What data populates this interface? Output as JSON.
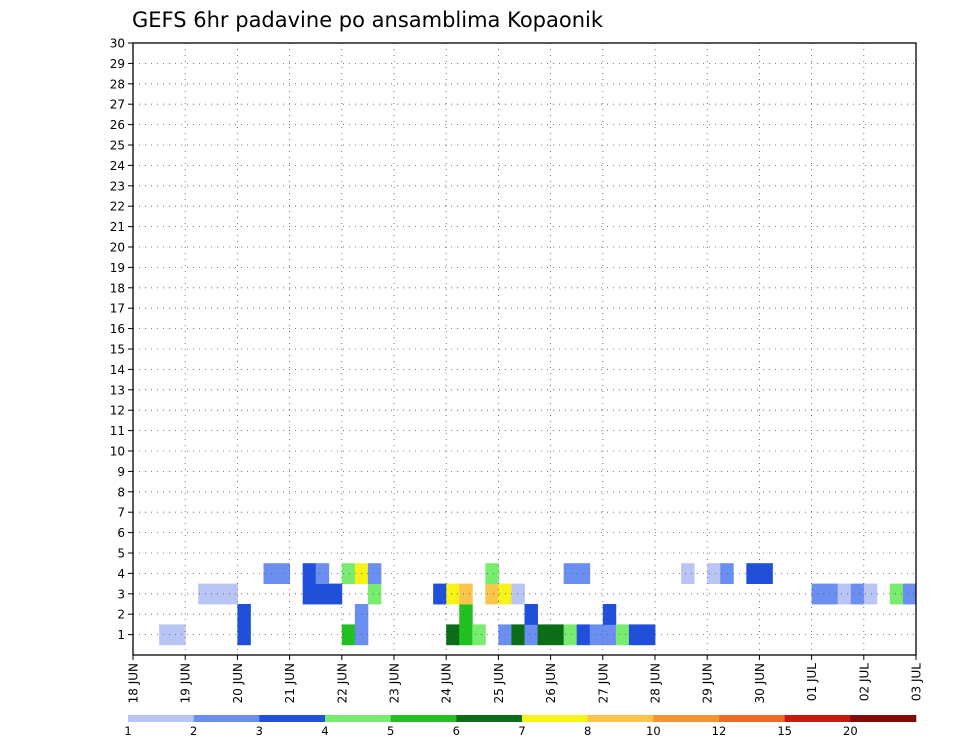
{
  "chart_data": {
    "type": "heatmap",
    "title": "GEFS 6hr padavine po ansamblima Kopaonik",
    "x_labels": [
      "18 JUN",
      "19 JUN",
      "20 JUN",
      "21 JUN",
      "22 JUN",
      "23 JUN",
      "24 JUN",
      "25 JUN",
      "26 JUN",
      "27 JUN",
      "28 JUN",
      "29 JUN",
      "30 JUN",
      "01 JUL",
      "02 JUL",
      "03 JUL"
    ],
    "y_labels": [
      "1",
      "2",
      "3",
      "4",
      "5",
      "6",
      "7",
      "8",
      "9",
      "10",
      "11",
      "12",
      "13",
      "14",
      "15",
      "16",
      "17",
      "18",
      "19",
      "20",
      "21",
      "22",
      "23",
      "24",
      "25",
      "26",
      "27",
      "28",
      "29",
      "30"
    ],
    "ylim": [
      0,
      30
    ],
    "x_steps": 60,
    "steps_per_day": 4,
    "grid": true,
    "colorbar": {
      "tick_labels": [
        "1",
        "2",
        "3",
        "4",
        "5",
        "6",
        "7",
        "8",
        "10",
        "12",
        "15",
        "20"
      ],
      "colors": [
        "#b9c6f5",
        "#6a8ff0",
        "#1f4fdb",
        "#78ec6e",
        "#22c122",
        "#0a6e16",
        "#f7f218",
        "#fbc44a",
        "#f79433",
        "#ef6a22",
        "#c8190f",
        "#840a0a"
      ]
    },
    "cells": [
      [
        2,
        1,
        0
      ],
      [
        3,
        1,
        0
      ],
      [
        8,
        1,
        2
      ],
      [
        8,
        2,
        2
      ],
      [
        16,
        1,
        4
      ],
      [
        17,
        1,
        1
      ],
      [
        17,
        2,
        1
      ],
      [
        24,
        1,
        5
      ],
      [
        25,
        1,
        4
      ],
      [
        25,
        2,
        4
      ],
      [
        26,
        1,
        3
      ],
      [
        28,
        1,
        1
      ],
      [
        29,
        1,
        5
      ],
      [
        30,
        1,
        1
      ],
      [
        30,
        2,
        2
      ],
      [
        31,
        1,
        5
      ],
      [
        32,
        1,
        5
      ],
      [
        33,
        1,
        3
      ],
      [
        34,
        1,
        2
      ],
      [
        35,
        1,
        1
      ],
      [
        36,
        1,
        1
      ],
      [
        36,
        2,
        2
      ],
      [
        37,
        1,
        3
      ],
      [
        38,
        1,
        2
      ],
      [
        39,
        1,
        2
      ],
      [
        5,
        3,
        0
      ],
      [
        6,
        3,
        0
      ],
      [
        7,
        3,
        0
      ],
      [
        13,
        3,
        2
      ],
      [
        13,
        4,
        2
      ],
      [
        14,
        3,
        2
      ],
      [
        15,
        3,
        2
      ],
      [
        18,
        3,
        3
      ],
      [
        23,
        3,
        2
      ],
      [
        24,
        3,
        6
      ],
      [
        25,
        3,
        7
      ],
      [
        27,
        3,
        7
      ],
      [
        28,
        3,
        6
      ],
      [
        29,
        3,
        0
      ],
      [
        10,
        4,
        1
      ],
      [
        11,
        4,
        1
      ],
      [
        14,
        4,
        1
      ],
      [
        16,
        4,
        3
      ],
      [
        17,
        4,
        6
      ],
      [
        18,
        4,
        1
      ],
      [
        27,
        4,
        3
      ],
      [
        33,
        4,
        1
      ],
      [
        34,
        4,
        1
      ],
      [
        42,
        4,
        0
      ],
      [
        44,
        4,
        0
      ],
      [
        45,
        4,
        1
      ],
      [
        47,
        4,
        2
      ],
      [
        48,
        4,
        2
      ],
      [
        52,
        3,
        1
      ],
      [
        53,
        3,
        1
      ],
      [
        54,
        3,
        0
      ],
      [
        55,
        3,
        1
      ],
      [
        56,
        3,
        0
      ],
      [
        58,
        3,
        3
      ],
      [
        59,
        3,
        1
      ]
    ]
  }
}
